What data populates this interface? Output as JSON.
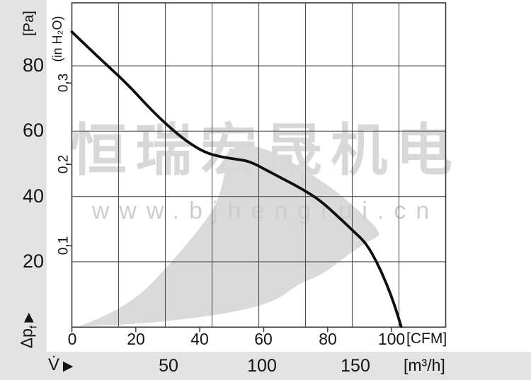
{
  "watermark": {
    "brand_cjk": "恒瑞宏晟机电",
    "website": "www.bjhengrui.cn"
  },
  "y_axis": {
    "primary_unit": "[Pa]",
    "secondary_unit": "(in H₂O)",
    "primary_tick_labels": [
      "80",
      "60",
      "40",
      "20"
    ],
    "secondary_tick_labels": [
      "0,3",
      "0,2",
      "0,1"
    ],
    "quantity_symbol": "Δp",
    "quantity_subscript": "f",
    "axis_arrow": "▶"
  },
  "x_axis": {
    "primary_tick_labels": [
      "0",
      "20",
      "40",
      "60",
      "80",
      "100"
    ],
    "primary_unit": "[CFM]",
    "secondary_tick_labels": [
      "50",
      "100",
      "150"
    ],
    "secondary_unit": "[m³/h]",
    "quantity_symbol": "V̇",
    "axis_arrow": "▶"
  },
  "chart_data": {
    "type": "line",
    "title": "Fan static pressure vs. airflow characteristic curve",
    "xlabel_primary": "V̇ [CFM]",
    "xlabel_secondary": "V̇ [m³/h]",
    "ylabel_primary": "Δpf [Pa]",
    "ylabel_secondary": "Δpf (in H₂O)",
    "grid": true,
    "legend": false,
    "x_range_cfm": [
      0,
      117
    ],
    "x_range_m3h": [
      0,
      200
    ],
    "y_range_pa": [
      0,
      99
    ],
    "x_ticks_cfm": [
      0,
      20,
      40,
      60,
      80,
      100
    ],
    "x_ticks_m3h": [
      50,
      100,
      150
    ],
    "x_gridline_step_m3h": 25,
    "y_gridlines_pa": [
      20,
      40,
      60,
      80
    ],
    "y_ticks_inh2o": [
      0.1,
      0.2,
      0.3
    ],
    "pa_per_inh2o": 249.089,
    "series": [
      {
        "name": "pressure_curve",
        "x_unit": "CFM",
        "y_unit": "Pa",
        "x": [
          0,
          8.5,
          17.0,
          25.2,
          31.8,
          36.9,
          41.8,
          46.7,
          51.3,
          55.5,
          60.6,
          66.2,
          72.0,
          77.7,
          83.5,
          88.4,
          92.1,
          95.7,
          98.5,
          101.0,
          103.0
        ],
        "y": [
          90.4,
          82.4,
          74.8,
          66.1,
          60.1,
          56.2,
          53.4,
          52.1,
          51.4,
          50.8,
          48.2,
          45.3,
          42.3,
          38.8,
          33.6,
          29.1,
          25.6,
          19.3,
          13.1,
          6.6,
          0.2
        ]
      }
    ],
    "operating_region_polygon": {
      "x_unit": "CFM",
      "y_unit": "Pa",
      "x": [
        2.3,
        13.0,
        22.9,
        32.9,
        42.9,
        51.8,
        59.1,
        65.1,
        70.6,
        78.4,
        85.5,
        91.0,
        95.0,
        96.6,
        94.1,
        89.5,
        83.5,
        76.8,
        69.5,
        62.9,
        56.6,
        51.3,
        48.4,
        45.8,
        41.3,
        35.6,
        29.2,
        22.5,
        15.6,
        8.5
      ],
      "y": [
        0.2,
        0.6,
        1.2,
        2.2,
        3.4,
        4.9,
        6.6,
        8.9,
        13.1,
        16.1,
        21.5,
        25.2,
        27.4,
        28.4,
        31.7,
        35.8,
        41.0,
        45.6,
        50.1,
        53.8,
        55.5,
        56.4,
        49.9,
        38.4,
        31.9,
        25.0,
        17.8,
        10.9,
        6.1,
        2.7
      ]
    }
  }
}
